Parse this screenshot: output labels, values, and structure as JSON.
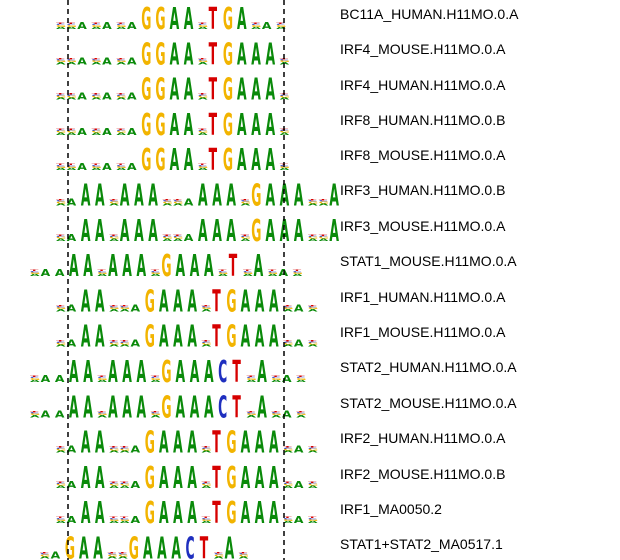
{
  "colors": {
    "A": "#0a8a0a",
    "C": "#1f2fbf",
    "G": "#f2b400",
    "T": "#d60000",
    "guide": "#000000"
  },
  "motifs": [
    {
      "id": "BC11A_HUMAN.H11MO.0.A",
      "logo": "--a-a-aGGAA-TGA-a-"
    },
    {
      "id": "IRF4_MOUSE.H11MO.0.A",
      "logo": "--a-a-aGGAA-TGAAA-"
    },
    {
      "id": "IRF4_HUMAN.H11MO.0.A",
      "logo": "--a-a-aGGAA-TGAAA-"
    },
    {
      "id": "IRF8_HUMAN.H11MO.0.B",
      "logo": "--a-a-aGGAA-TGAAA-"
    },
    {
      "id": "IRF8_MOUSE.H11MO.0.A",
      "logo": "--a-a-aGGAA-TGAAA-"
    },
    {
      "id": "IRF3_HUMAN.H11MO.0.B",
      "logo": "-aAA-AAA--aAAA-GAAA--A"
    },
    {
      "id": "IRF3_MOUSE.H11MO.0.A",
      "logo": "-aAA-AAA--aAAA-GAAA--A"
    },
    {
      "id": "STAT1_MOUSE.H11MO.0.A",
      "logo": "-aaAA-AAA-GAAA-T-A-a-"
    },
    {
      "id": "IRF1_HUMAN.H11MO.0.A",
      "logo": "-aAA--aGAAA-TGAAA-a-"
    },
    {
      "id": "IRF1_MOUSE.H11MO.0.A",
      "logo": "-aAA--aGAAA-TGAAA-a-"
    },
    {
      "id": "STAT2_HUMAN.H11MO.0.A",
      "logo": "-aaAA-AAA-GAAACT-A-a-"
    },
    {
      "id": "STAT2_MOUSE.H11MO.0.A",
      "logo": "-aaAA-AAA-GAAACT-A-a-"
    },
    {
      "id": "IRF2_HUMAN.H11MO.0.A",
      "logo": "-aAA--aGAAA-TGAAA-a-"
    },
    {
      "id": "IRF2_MOUSE.H11MO.0.B",
      "logo": "-aAA--aGAAA-TGAAA-a-"
    },
    {
      "id": "IRF1_MA0050.2",
      "logo": "-aAA--aGAAA-TGAAA-a-"
    },
    {
      "id": "STAT1+STAT2_MA0517.1",
      "logo": "-aGAA--GAAACT-A-"
    }
  ]
}
